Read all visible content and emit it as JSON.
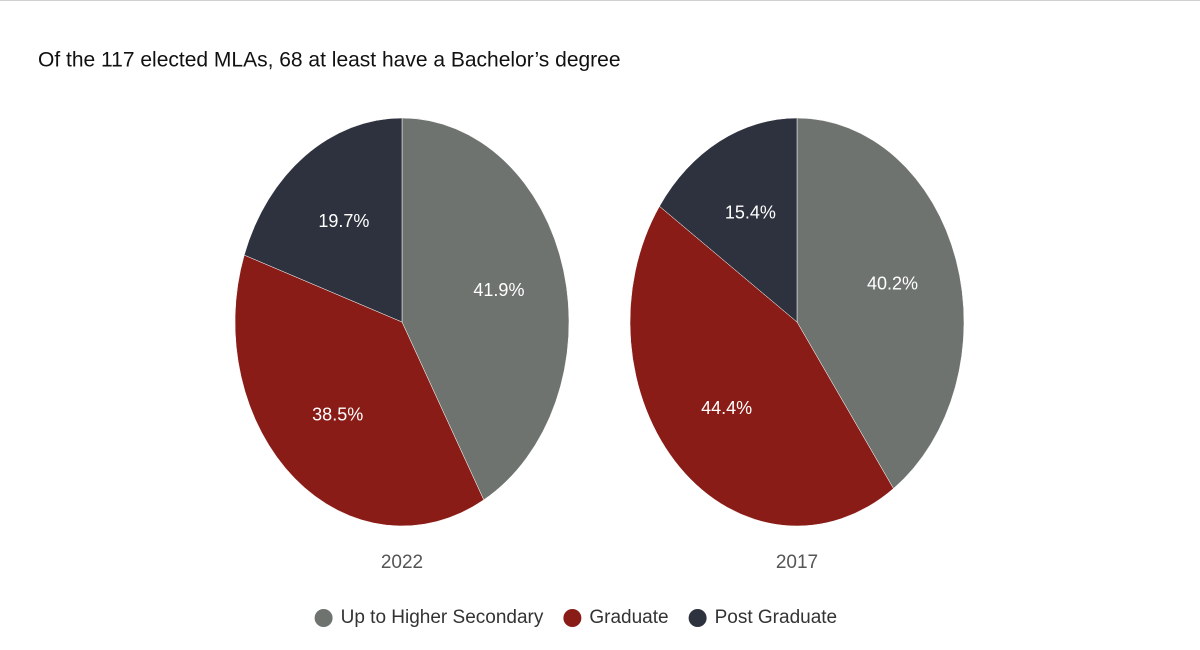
{
  "header": {
    "title": "Of the 117 elected MLAs, 68 at least have a Bachelor’s degree"
  },
  "chart_data": [
    {
      "type": "pie",
      "title": "2022",
      "categories": [
        "Up to Higher Secondary",
        "Graduate",
        "Post Graduate"
      ],
      "values": [
        41.9,
        38.5,
        19.7
      ],
      "value_labels": [
        "41.9%",
        "38.5%",
        "19.7%"
      ],
      "colors": [
        "#6e736f",
        "#8a1c17",
        "#2e323e"
      ]
    },
    {
      "type": "pie",
      "title": "2017",
      "categories": [
        "Up to Higher Secondary",
        "Graduate",
        "Post Graduate"
      ],
      "values": [
        40.2,
        44.4,
        15.4
      ],
      "value_labels": [
        "40.2%",
        "44.4%",
        "15.4%"
      ],
      "colors": [
        "#6e736f",
        "#8a1c17",
        "#2e323e"
      ]
    }
  ]
}
